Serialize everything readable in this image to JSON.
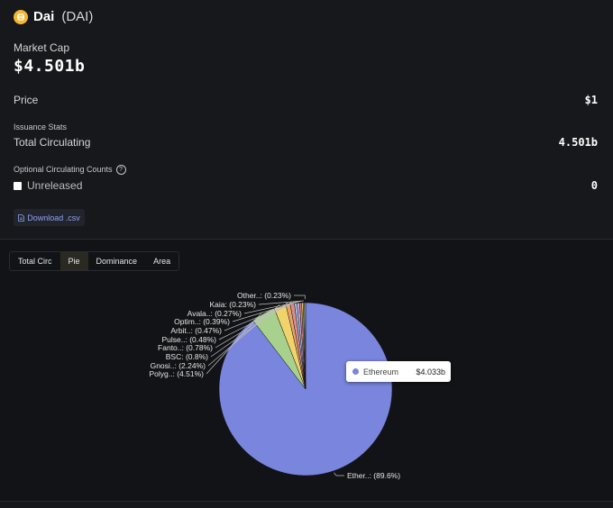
{
  "coin": {
    "name": "Dai",
    "symbol": "(DAI)"
  },
  "market_cap": {
    "label": "Market Cap",
    "value": "$4.501b"
  },
  "price": {
    "label": "Price",
    "value": "$1"
  },
  "issuance": {
    "section_label": "Issuance Stats",
    "total_label": "Total Circulating",
    "total_value": "4.501b"
  },
  "optional": {
    "label": "Optional Circulating Counts",
    "unreleased_label": "Unreleased",
    "unreleased_value": "0"
  },
  "download_label": "Download .csv",
  "tabs": [
    "Total Circ",
    "Pie",
    "Dominance",
    "Area"
  ],
  "active_tab": "Pie",
  "tooltip": {
    "name": "Ethereum",
    "value": "$4.033b"
  },
  "colors": {
    "ethereum": "#7a85dd",
    "accent": "#8fa0f0",
    "coin_icon": "#f4b731"
  },
  "chart_data": {
    "type": "pie",
    "slices": [
      {
        "label": "Ether..: (89.6%)",
        "value": 89.6,
        "color": "#7a85dd"
      },
      {
        "label": "Polyg..: (4.51%)",
        "value": 4.51,
        "color": "#a9d18e"
      },
      {
        "label": "Gnosi..: (2.24%)",
        "value": 2.24,
        "color": "#f1d36b"
      },
      {
        "label": "BSC: (0.8%)",
        "value": 0.8,
        "color": "#e7a469"
      },
      {
        "label": "Fanto..: (0.78%)",
        "value": 0.78,
        "color": "#d98c8c"
      },
      {
        "label": "Pulse..: (0.48%)",
        "value": 0.48,
        "color": "#9fc0e6"
      },
      {
        "label": "Arbit..: (0.47%)",
        "value": 0.47,
        "color": "#c9a6d9"
      },
      {
        "label": "Optim..: (0.39%)",
        "value": 0.39,
        "color": "#e08080"
      },
      {
        "label": "Avala..: (0.27%)",
        "value": 0.27,
        "color": "#e8c96a"
      },
      {
        "label": "Kaia: (0.23%)",
        "value": 0.23,
        "color": "#8ec9c0"
      },
      {
        "label": "Other..: (0.23%)",
        "value": 0.23,
        "color": "#b89b72"
      }
    ]
  }
}
